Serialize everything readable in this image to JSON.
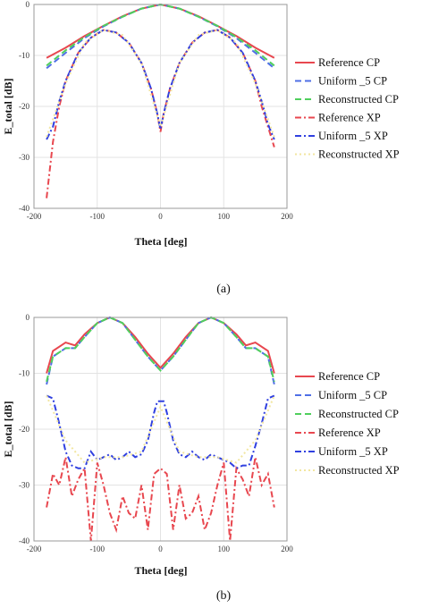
{
  "chart_data": [
    {
      "type": "line",
      "caption": "(a)",
      "xlabel": "Theta [deg]",
      "ylabel": "E_total [dB]",
      "xlim": [
        -200,
        200
      ],
      "ylim": [
        -40,
        0
      ],
      "xticks": [
        -200,
        -100,
        0,
        100,
        200
      ],
      "yticks": [
        0,
        -10,
        -20,
        -30,
        -40
      ],
      "grid": true,
      "legend_position": "right",
      "series": [
        {
          "name": "Reference  CP",
          "color": "#e8474f",
          "dash": "solid",
          "x": [
            -180,
            -150,
            -120,
            -90,
            -60,
            -30,
            0,
            30,
            60,
            90,
            120,
            150,
            180
          ],
          "y": [
            -10.5,
            -8.5,
            -6.2,
            -4.2,
            -2.3,
            -0.8,
            0,
            -0.8,
            -2.3,
            -4.2,
            -6.2,
            -8.5,
            -10.5
          ]
        },
        {
          "name": "Uniform _5  CP",
          "color": "#4f6fe6",
          "dash": "dash",
          "x": [
            -180,
            -150,
            -120,
            -90,
            -60,
            -30,
            0,
            30,
            60,
            90,
            120,
            150,
            180
          ],
          "y": [
            -12.5,
            -9.5,
            -6.6,
            -4.3,
            -2.4,
            -0.8,
            0,
            -0.8,
            -2.4,
            -4.3,
            -6.6,
            -9.5,
            -12.5
          ]
        },
        {
          "name": "Reconstructed CP",
          "color": "#4fcf5c",
          "dash": "dash",
          "x": [
            -180,
            -150,
            -120,
            -90,
            -60,
            -30,
            0,
            30,
            60,
            90,
            120,
            150,
            180
          ],
          "y": [
            -12.0,
            -9.0,
            -6.4,
            -4.2,
            -2.4,
            -0.8,
            0,
            -0.8,
            -2.4,
            -4.2,
            -6.4,
            -9.0,
            -12.0
          ]
        },
        {
          "name": "Reference XP",
          "color": "#e8474f",
          "dash": "dashdot",
          "x": [
            -180,
            -170,
            -160,
            -150,
            -130,
            -110,
            -90,
            -70,
            -50,
            -30,
            -15,
            -5,
            0,
            5,
            15,
            30,
            50,
            70,
            90,
            110,
            130,
            150,
            160,
            170,
            180
          ],
          "y": [
            -38,
            -27,
            -20,
            -15,
            -9.5,
            -6.5,
            -5,
            -5.5,
            -7.5,
            -11.5,
            -16.5,
            -21.5,
            -25,
            -21.5,
            -16.5,
            -11.5,
            -7.5,
            -5.5,
            -5,
            -6.5,
            -9.5,
            -15,
            -20,
            -24,
            -28
          ]
        },
        {
          "name": "Uniform _5 XP",
          "color": "#3040e0",
          "dash": "dashdot",
          "x": [
            -180,
            -170,
            -160,
            -150,
            -130,
            -110,
            -90,
            -70,
            -50,
            -30,
            -15,
            -5,
            0,
            5,
            15,
            30,
            50,
            70,
            90,
            110,
            130,
            150,
            160,
            170,
            180
          ],
          "y": [
            -26.5,
            -24,
            -19,
            -15,
            -9.5,
            -6.5,
            -5,
            -5.5,
            -7.5,
            -11.5,
            -16.5,
            -21.5,
            -24.5,
            -21.5,
            -16.5,
            -11.5,
            -7.5,
            -5.5,
            -5,
            -6.5,
            -9.5,
            -15,
            -19,
            -23.5,
            -26.5
          ]
        },
        {
          "name": "Reconstructed XP",
          "color": "#f2e6a0",
          "dash": "dot",
          "x": [
            -180,
            -150,
            -120,
            -90,
            -60,
            -30,
            0,
            30,
            60,
            90,
            120,
            150,
            180
          ],
          "y": [
            -26,
            -15.5,
            -7.5,
            -5,
            -6,
            -11.5,
            -24,
            -11.5,
            -6,
            -5,
            -7.5,
            -15.5,
            -26
          ]
        }
      ]
    },
    {
      "type": "line",
      "caption": "(b)",
      "xlabel": "Theta [deg]",
      "ylabel": "E_total [dB]",
      "xlim": [
        -200,
        200
      ],
      "ylim": [
        -40,
        0
      ],
      "xticks": [
        -200,
        -100,
        0,
        100,
        200
      ],
      "yticks": [
        0,
        -10,
        -20,
        -30,
        -40
      ],
      "grid": true,
      "legend_position": "right",
      "series": [
        {
          "name": "Reference  CP",
          "color": "#e8474f",
          "dash": "solid",
          "x": [
            -180,
            -170,
            -150,
            -135,
            -120,
            -100,
            -80,
            -60,
            -40,
            -20,
            0,
            20,
            40,
            60,
            80,
            100,
            120,
            135,
            150,
            170,
            180
          ],
          "y": [
            -10,
            -6,
            -4.5,
            -5,
            -3,
            -1,
            0,
            -1,
            -3.5,
            -6.5,
            -9,
            -6.5,
            -3.5,
            -1,
            0,
            -1,
            -3,
            -5,
            -4.5,
            -6,
            -10
          ]
        },
        {
          "name": "Uniform _5  CP",
          "color": "#4f6fe6",
          "dash": "dash",
          "x": [
            -180,
            -170,
            -150,
            -135,
            -120,
            -100,
            -80,
            -60,
            -40,
            -20,
            0,
            20,
            40,
            60,
            80,
            100,
            120,
            135,
            150,
            170,
            180
          ],
          "y": [
            -12,
            -7,
            -5.5,
            -5.5,
            -3.5,
            -1,
            0,
            -1,
            -4,
            -7,
            -9.5,
            -7,
            -4,
            -1,
            0,
            -1,
            -3.5,
            -5.5,
            -5.5,
            -7,
            -12
          ]
        },
        {
          "name": "Reconstructed CP",
          "color": "#4fcf5c",
          "dash": "dash",
          "x": [
            -180,
            -170,
            -150,
            -135,
            -120,
            -100,
            -80,
            -60,
            -40,
            -20,
            0,
            20,
            40,
            60,
            80,
            100,
            120,
            135,
            150,
            170,
            180
          ],
          "y": [
            -11.5,
            -7,
            -5.5,
            -5.5,
            -3.5,
            -1,
            0,
            -1,
            -4,
            -7,
            -9.5,
            -7,
            -4,
            -1,
            0,
            -1,
            -3.5,
            -5.5,
            -5.5,
            -7,
            -11.5
          ]
        },
        {
          "name": "Reference XP",
          "color": "#e8474f",
          "dash": "dashdot",
          "x": [
            -180,
            -170,
            -160,
            -150,
            -140,
            -130,
            -120,
            -110,
            -100,
            -90,
            -80,
            -70,
            -60,
            -50,
            -40,
            -30,
            -20,
            -10,
            0,
            10,
            20,
            30,
            40,
            50,
            60,
            70,
            80,
            90,
            100,
            110,
            120,
            130,
            140,
            150,
            160,
            170,
            180
          ],
          "y": [
            -34,
            -28,
            -30,
            -25,
            -32,
            -29,
            -27,
            -40,
            -26,
            -30,
            -35,
            -38,
            -32,
            -35,
            -36,
            -30,
            -38,
            -28,
            -27,
            -28,
            -38,
            -30,
            -36,
            -35,
            -32,
            -38,
            -35,
            -30,
            -26,
            -40,
            -27,
            -29,
            -32,
            -25,
            -30,
            -28,
            -34
          ]
        },
        {
          "name": "Uniform _5 XP",
          "color": "#3040e0",
          "dash": "dashdot",
          "x": [
            -180,
            -170,
            -160,
            -150,
            -140,
            -130,
            -120,
            -110,
            -100,
            -90,
            -80,
            -70,
            -60,
            -50,
            -40,
            -30,
            -20,
            -10,
            -5,
            0,
            5,
            10,
            20,
            30,
            40,
            50,
            60,
            70,
            80,
            90,
            100,
            110,
            120,
            130,
            140,
            150,
            160,
            170,
            180
          ],
          "y": [
            -14,
            -14.5,
            -19,
            -24,
            -26.5,
            -27,
            -27,
            -24,
            -25.5,
            -25,
            -24.5,
            -25.5,
            -25,
            -24,
            -25,
            -24.5,
            -22,
            -17,
            -15,
            -15,
            -15,
            -17,
            -22,
            -24.5,
            -25,
            -24,
            -25,
            -25.5,
            -24.5,
            -25,
            -25.5,
            -26,
            -27,
            -26.5,
            -26.5,
            -23,
            -19,
            -14.5,
            -14
          ]
        },
        {
          "name": "Reconstructed XP",
          "color": "#f2e6a0",
          "dash": "dot",
          "x": [
            -180,
            -150,
            -120,
            -90,
            -60,
            -30,
            0,
            30,
            60,
            90,
            120,
            150,
            180
          ],
          "y": [
            -14,
            -22,
            -26,
            -25,
            -25,
            -24,
            -16,
            -24,
            -25,
            -25,
            -26,
            -22,
            -14
          ]
        }
      ]
    }
  ]
}
